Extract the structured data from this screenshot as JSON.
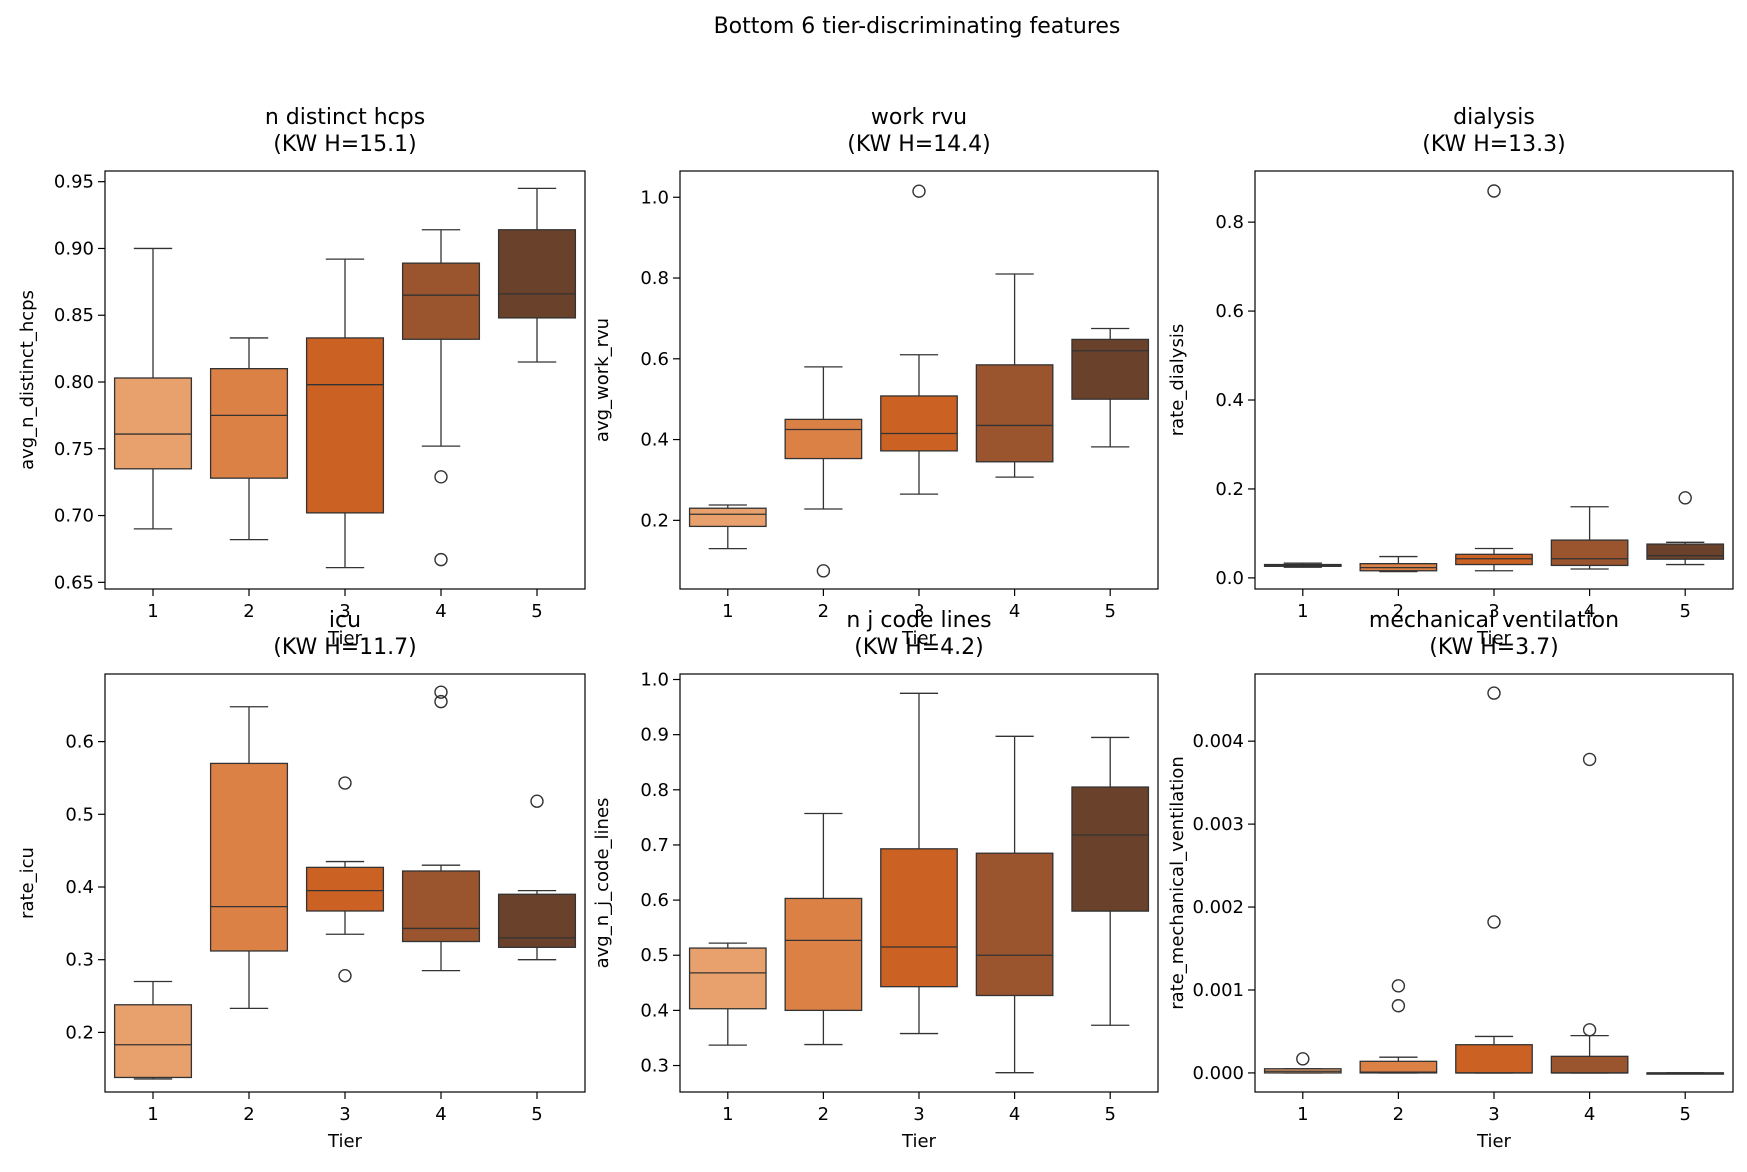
{
  "figure_title": "Bottom 6 tier-discriminating features",
  "chart_data": [
    {
      "type": "box",
      "title_line1": "n distinct hcps",
      "title_line2": "(KW H=15.1)",
      "xlabel": "Tier",
      "ylabel": "avg_n_distinct_hcps",
      "categories": [
        "1",
        "2",
        "3",
        "4",
        "5"
      ],
      "ylim": [
        0.645,
        0.958
      ],
      "yticks": [
        0.65,
        0.7,
        0.75,
        0.8,
        0.85,
        0.9,
        0.95
      ],
      "ytick_labels": [
        "0.65",
        "0.70",
        "0.75",
        "0.80",
        "0.85",
        "0.90",
        "0.95"
      ],
      "boxes": [
        {
          "tier": "1",
          "whislo": 0.69,
          "q1": 0.735,
          "med": 0.761,
          "q3": 0.803,
          "whishi": 0.9,
          "fliers": []
        },
        {
          "tier": "2",
          "whislo": 0.682,
          "q1": 0.728,
          "med": 0.775,
          "q3": 0.81,
          "whishi": 0.833,
          "fliers": []
        },
        {
          "tier": "3",
          "whislo": 0.661,
          "q1": 0.702,
          "med": 0.798,
          "q3": 0.833,
          "whishi": 0.892,
          "fliers": []
        },
        {
          "tier": "4",
          "whislo": 0.752,
          "q1": 0.832,
          "med": 0.865,
          "q3": 0.889,
          "whishi": 0.914,
          "fliers": [
            0.729,
            0.667
          ]
        },
        {
          "tier": "5",
          "whislo": 0.815,
          "q1": 0.848,
          "med": 0.866,
          "q3": 0.914,
          "whishi": 0.945,
          "fliers": []
        }
      ]
    },
    {
      "type": "box",
      "title_line1": "work rvu",
      "title_line2": "(KW H=14.4)",
      "xlabel": "Tier",
      "ylabel": "avg_work_rvu",
      "categories": [
        "1",
        "2",
        "3",
        "4",
        "5"
      ],
      "ylim": [
        0.03,
        1.065
      ],
      "yticks": [
        0.2,
        0.4,
        0.6,
        0.8,
        1.0
      ],
      "ytick_labels": [
        "0.2",
        "0.4",
        "0.6",
        "0.8",
        "1.0"
      ],
      "boxes": [
        {
          "tier": "1",
          "whislo": 0.13,
          "q1": 0.185,
          "med": 0.215,
          "q3": 0.23,
          "whishi": 0.238,
          "fliers": []
        },
        {
          "tier": "2",
          "whislo": 0.228,
          "q1": 0.353,
          "med": 0.425,
          "q3": 0.45,
          "whishi": 0.58,
          "fliers": [
            0.075
          ]
        },
        {
          "tier": "3",
          "whislo": 0.265,
          "q1": 0.372,
          "med": 0.415,
          "q3": 0.508,
          "whishi": 0.61,
          "fliers": [
            1.015
          ]
        },
        {
          "tier": "4",
          "whislo": 0.307,
          "q1": 0.345,
          "med": 0.435,
          "q3": 0.585,
          "whishi": 0.81,
          "fliers": []
        },
        {
          "tier": "5",
          "whislo": 0.382,
          "q1": 0.5,
          "med": 0.62,
          "q3": 0.648,
          "whishi": 0.675,
          "fliers": []
        }
      ]
    },
    {
      "type": "box",
      "title_line1": "dialysis",
      "title_line2": "(KW H=13.3)",
      "xlabel": "Tier",
      "ylabel": "rate_dialysis",
      "categories": [
        "1",
        "2",
        "3",
        "4",
        "5"
      ],
      "ylim": [
        -0.025,
        0.915
      ],
      "yticks": [
        0.0,
        0.2,
        0.4,
        0.6,
        0.8
      ],
      "ytick_labels": [
        "0.0",
        "0.2",
        "0.4",
        "0.6",
        "0.8"
      ],
      "boxes": [
        {
          "tier": "1",
          "whislo": 0.024,
          "q1": 0.026,
          "med": 0.028,
          "q3": 0.03,
          "whishi": 0.033,
          "fliers": []
        },
        {
          "tier": "2",
          "whislo": 0.014,
          "q1": 0.016,
          "med": 0.023,
          "q3": 0.032,
          "whishi": 0.048,
          "fliers": []
        },
        {
          "tier": "3",
          "whislo": 0.016,
          "q1": 0.03,
          "med": 0.043,
          "q3": 0.053,
          "whishi": 0.066,
          "fliers": [
            0.87
          ]
        },
        {
          "tier": "4",
          "whislo": 0.02,
          "q1": 0.028,
          "med": 0.043,
          "q3": 0.085,
          "whishi": 0.16,
          "fliers": []
        },
        {
          "tier": "5",
          "whislo": 0.03,
          "q1": 0.042,
          "med": 0.05,
          "q3": 0.076,
          "whishi": 0.08,
          "fliers": [
            0.18
          ]
        }
      ]
    },
    {
      "type": "box",
      "title_line1": "icu",
      "title_line2": "(KW H=11.7)",
      "xlabel": "Tier",
      "ylabel": "rate_icu",
      "categories": [
        "1",
        "2",
        "3",
        "4",
        "5"
      ],
      "ylim": [
        0.118,
        0.693
      ],
      "yticks": [
        0.2,
        0.3,
        0.4,
        0.5,
        0.6
      ],
      "ytick_labels": [
        "0.2",
        "0.3",
        "0.4",
        "0.5",
        "0.6"
      ],
      "boxes": [
        {
          "tier": "1",
          "whislo": 0.136,
          "q1": 0.138,
          "med": 0.183,
          "q3": 0.238,
          "whishi": 0.27,
          "fliers": []
        },
        {
          "tier": "2",
          "whislo": 0.233,
          "q1": 0.312,
          "med": 0.373,
          "q3": 0.57,
          "whishi": 0.648,
          "fliers": []
        },
        {
          "tier": "3",
          "whislo": 0.335,
          "q1": 0.367,
          "med": 0.395,
          "q3": 0.427,
          "whishi": 0.435,
          "fliers": [
            0.543,
            0.278
          ]
        },
        {
          "tier": "4",
          "whislo": 0.285,
          "q1": 0.325,
          "med": 0.343,
          "q3": 0.422,
          "whishi": 0.43,
          "fliers": [
            0.668,
            0.655
          ]
        },
        {
          "tier": "5",
          "whislo": 0.3,
          "q1": 0.317,
          "med": 0.33,
          "q3": 0.39,
          "whishi": 0.395,
          "fliers": [
            0.518
          ]
        }
      ]
    },
    {
      "type": "box",
      "title_line1": "n j code lines",
      "title_line2": "(KW H=4.2)",
      "xlabel": "Tier",
      "ylabel": "avg_n_j_code_lines",
      "categories": [
        "1",
        "2",
        "3",
        "4",
        "5"
      ],
      "ylim": [
        0.252,
        1.01
      ],
      "yticks": [
        0.3,
        0.4,
        0.5,
        0.6,
        0.7,
        0.8,
        0.9,
        1.0
      ],
      "ytick_labels": [
        "0.3",
        "0.4",
        "0.5",
        "0.6",
        "0.7",
        "0.8",
        "0.9",
        "1.0"
      ],
      "boxes": [
        {
          "tier": "1",
          "whislo": 0.337,
          "q1": 0.403,
          "med": 0.468,
          "q3": 0.513,
          "whishi": 0.522,
          "fliers": []
        },
        {
          "tier": "2",
          "whislo": 0.338,
          "q1": 0.4,
          "med": 0.527,
          "q3": 0.603,
          "whishi": 0.757,
          "fliers": []
        },
        {
          "tier": "3",
          "whislo": 0.358,
          "q1": 0.443,
          "med": 0.515,
          "q3": 0.693,
          "whishi": 0.975,
          "fliers": []
        },
        {
          "tier": "4",
          "whislo": 0.287,
          "q1": 0.427,
          "med": 0.5,
          "q3": 0.685,
          "whishi": 0.897,
          "fliers": []
        },
        {
          "tier": "5",
          "whislo": 0.373,
          "q1": 0.58,
          "med": 0.718,
          "q3": 0.805,
          "whishi": 0.895,
          "fliers": []
        }
      ]
    },
    {
      "type": "box",
      "title_line1": "mechanical ventilation",
      "title_line2": "(KW H=3.7)",
      "xlabel": "Tier",
      "ylabel": "rate_mechanical_ventilation",
      "categories": [
        "1",
        "2",
        "3",
        "4",
        "5"
      ],
      "ylim": [
        -0.00023,
        0.00481
      ],
      "yticks": [
        0.0,
        0.001,
        0.002,
        0.003,
        0.004
      ],
      "ytick_labels": [
        "0.000",
        "0.001",
        "0.002",
        "0.003",
        "0.004"
      ],
      "boxes": [
        {
          "tier": "1",
          "whislo": 0.0,
          "q1": 0.0,
          "med": 2e-05,
          "q3": 5e-05,
          "whishi": 5e-05,
          "fliers": [
            0.00017
          ]
        },
        {
          "tier": "2",
          "whislo": 0.0,
          "q1": 0.0,
          "med": 1e-05,
          "q3": 0.00014,
          "whishi": 0.00019,
          "fliers": [
            0.00105,
            0.00081
          ]
        },
        {
          "tier": "3",
          "whislo": 0.0,
          "q1": 0.0,
          "med": 0.0,
          "q3": 0.00034,
          "whishi": 0.00044,
          "fliers": [
            0.00458,
            0.00182
          ]
        },
        {
          "tier": "4",
          "whislo": 0.0,
          "q1": 0.0,
          "med": 0.0,
          "q3": 0.0002,
          "whishi": 0.00045,
          "fliers": [
            0.00378,
            0.00052
          ]
        },
        {
          "tier": "5",
          "whislo": 0.0,
          "q1": 0.0,
          "med": 0.0,
          "q3": 0.0,
          "whishi": 0.0,
          "fliers": []
        }
      ]
    }
  ],
  "tier_colors": [
    "#e8a06c",
    "#dc8146",
    "#cb6224",
    "#9a542e",
    "#6a412b"
  ]
}
